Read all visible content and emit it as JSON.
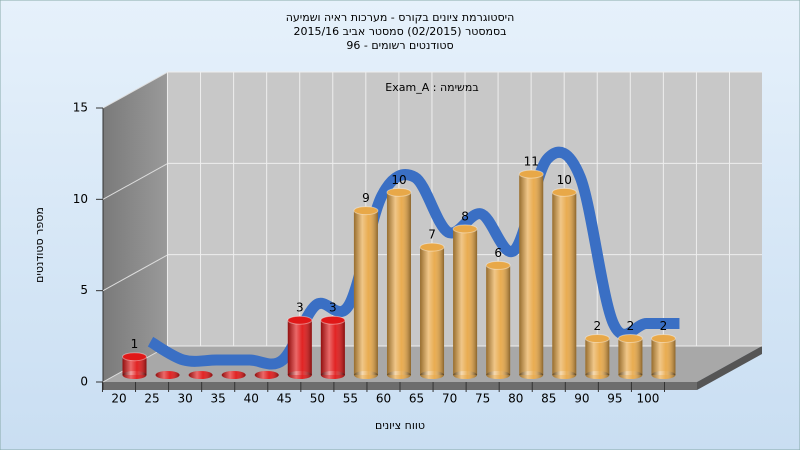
{
  "chart_data": {
    "type": "bar",
    "title_lines": [
      "היסטוגרמת ציונים בקורס - מערכות ראיה ושמיעה",
      "בסמסטר (02/2015)  סמסטר אביב 2015/16",
      "סטודנטים רשומים - 96"
    ],
    "annotation": "Exam_A : במשימה",
    "x_label": "טווח ציונים",
    "y_label": "מספר סטודנטים",
    "categories": [
      "20",
      "25",
      "30",
      "35",
      "40",
      "45",
      "50",
      "55",
      "60",
      "65",
      "70",
      "75",
      "80",
      "85",
      "90",
      "95",
      "100"
    ],
    "values": [
      1,
      0,
      0,
      0,
      0,
      3,
      3,
      9,
      10,
      7,
      8,
      6,
      11,
      10,
      2,
      2,
      2
    ],
    "colors": [
      "#e01818",
      "#e01818",
      "#e01818",
      "#e01818",
      "#e01818",
      "#e01818",
      "#e01818",
      "#e8a848",
      "#e8a848",
      "#e8a848",
      "#e8a848",
      "#e8a848",
      "#e8a848",
      "#e8a848",
      "#e8a848",
      "#e8a848",
      "#e8a848"
    ],
    "trend_color": "#3a6fc4",
    "ylim": [
      0,
      15
    ],
    "yticks": [
      0,
      5,
      10,
      15
    ],
    "grid": true
  }
}
